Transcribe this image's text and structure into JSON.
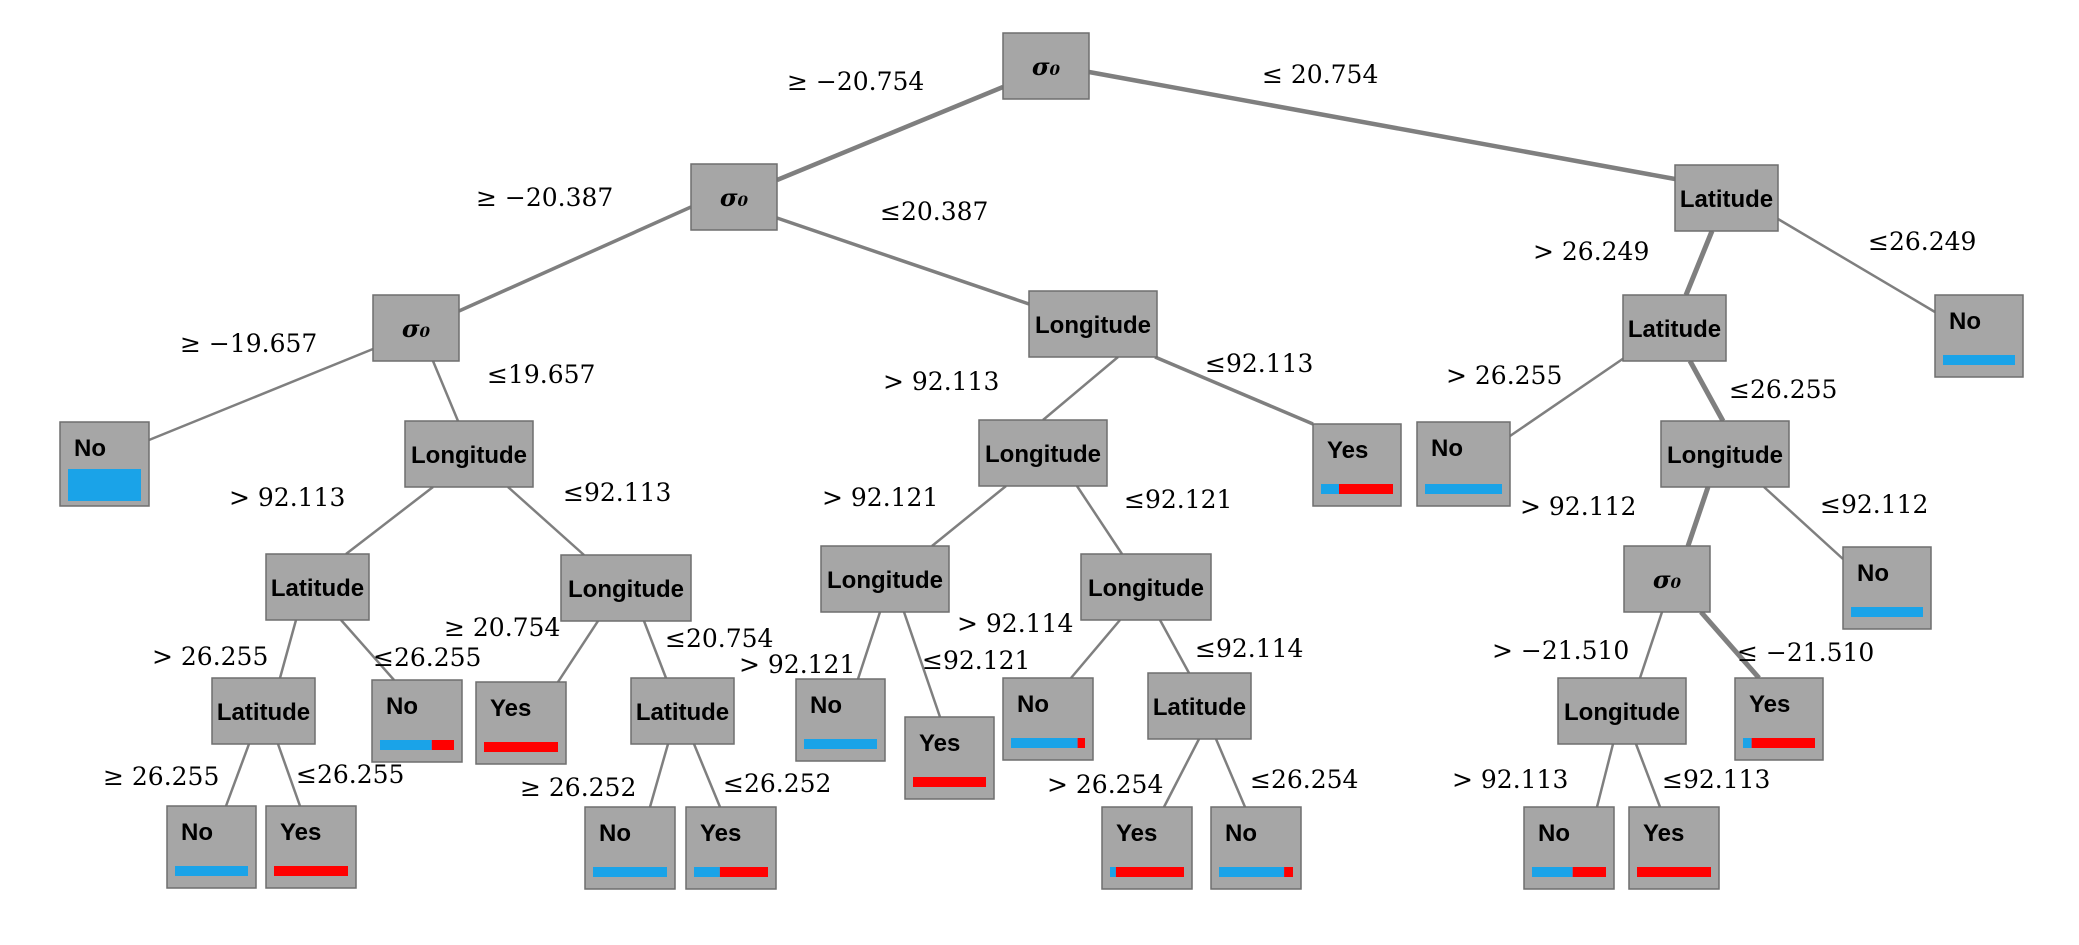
{
  "colors": {
    "no_class": "#1aa3e8",
    "yes_class": "#ff0000",
    "node_fill": "#a6a6a6",
    "edge": "#7f7f7f"
  },
  "nodes": [
    {
      "id": "n1",
      "label": "σ₀"
    },
    {
      "id": "n2",
      "label": "σ₀"
    },
    {
      "id": "n3",
      "label": "Latitude"
    },
    {
      "id": "n4",
      "label": "σ₀"
    },
    {
      "id": "n5",
      "label": "Longitude"
    },
    {
      "id": "n6",
      "label": "Latitude"
    },
    {
      "id": "n7",
      "label": "No",
      "no_share": 1.0,
      "yes_share": 0.0
    },
    {
      "id": "n8",
      "label": "No",
      "no_share": 1.0,
      "yes_share": 0.0
    },
    {
      "id": "n9",
      "label": "Longitude"
    },
    {
      "id": "n10",
      "label": "Longitude"
    },
    {
      "id": "n11",
      "label": "Yes",
      "no_share": 0.25,
      "yes_share": 0.75
    },
    {
      "id": "n12",
      "label": "No",
      "no_share": 1.0,
      "yes_share": 0.0
    },
    {
      "id": "n13",
      "label": "Longitude"
    },
    {
      "id": "n14",
      "label": "Latitude"
    },
    {
      "id": "n15",
      "label": "Longitude"
    },
    {
      "id": "n16",
      "label": "Longitude"
    },
    {
      "id": "n17",
      "label": "Longitude"
    },
    {
      "id": "n18",
      "label": "σ₀"
    },
    {
      "id": "n19",
      "label": "No",
      "no_share": 1.0,
      "yes_share": 0.0
    },
    {
      "id": "n20",
      "label": "Latitude"
    },
    {
      "id": "n21",
      "label": "No",
      "no_share": 0.7,
      "yes_share": 0.3
    },
    {
      "id": "n22",
      "label": "Yes",
      "no_share": 0.0,
      "yes_share": 1.0
    },
    {
      "id": "n23",
      "label": "Latitude"
    },
    {
      "id": "n24",
      "label": "No",
      "no_share": 1.0,
      "yes_share": 0.0
    },
    {
      "id": "n25",
      "label": "Yes",
      "no_share": 0.0,
      "yes_share": 1.0
    },
    {
      "id": "n26",
      "label": "No",
      "no_share": 0.9,
      "yes_share": 0.1
    },
    {
      "id": "n27",
      "label": "Latitude"
    },
    {
      "id": "n28",
      "label": "Longitude"
    },
    {
      "id": "n29",
      "label": "Yes",
      "no_share": 0.12,
      "yes_share": 0.88
    },
    {
      "id": "n30",
      "label": "No",
      "no_share": 1.0,
      "yes_share": 0.0
    },
    {
      "id": "n31",
      "label": "Yes",
      "no_share": 0.0,
      "yes_share": 1.0
    },
    {
      "id": "n32",
      "label": "No",
      "no_share": 1.0,
      "yes_share": 0.0
    },
    {
      "id": "n33",
      "label": "Yes",
      "no_share": 0.35,
      "yes_share": 0.65
    },
    {
      "id": "n34",
      "label": "Yes",
      "no_share": 0.08,
      "yes_share": 0.92
    },
    {
      "id": "n35",
      "label": "No",
      "no_share": 0.88,
      "yes_share": 0.12
    },
    {
      "id": "n36",
      "label": "No",
      "no_share": 0.55,
      "yes_share": 0.45
    },
    {
      "id": "n37",
      "label": "Yes",
      "no_share": 0.0,
      "yes_share": 1.0
    }
  ],
  "edges": [
    {
      "from": "n1",
      "to": "n2",
      "label": "≥ −20.754"
    },
    {
      "from": "n1",
      "to": "n3",
      "label": "≤ 20.754"
    },
    {
      "from": "n2",
      "to": "n4",
      "label": "≥ −20.387"
    },
    {
      "from": "n2",
      "to": "n5",
      "label": "≤20.387"
    },
    {
      "from": "n3",
      "to": "n6",
      "label": "> 26.249"
    },
    {
      "from": "n3",
      "to": "n7",
      "label": "≤26.249"
    },
    {
      "from": "n4",
      "to": "n8",
      "label": "≥ −19.657"
    },
    {
      "from": "n4",
      "to": "n9",
      "label": "≤19.657"
    },
    {
      "from": "n5",
      "to": "n10",
      "label": "> 92.113"
    },
    {
      "from": "n5",
      "to": "n11",
      "label": "≤92.113"
    },
    {
      "from": "n6",
      "to": "n12",
      "label": "> 26.255"
    },
    {
      "from": "n6",
      "to": "n13",
      "label": "≤26.255"
    },
    {
      "from": "n9",
      "to": "n14",
      "label": "> 92.113"
    },
    {
      "from": "n9",
      "to": "n15",
      "label": "≤92.113"
    },
    {
      "from": "n10",
      "to": "n16",
      "label": "> 92.121"
    },
    {
      "from": "n10",
      "to": "n17",
      "label": "≤92.121"
    },
    {
      "from": "n13",
      "to": "n18",
      "label": "> 92.112"
    },
    {
      "from": "n13",
      "to": "n19",
      "label": "≤92.112"
    },
    {
      "from": "n14",
      "to": "n20",
      "label": "> 26.255"
    },
    {
      "from": "n14",
      "to": "n21",
      "label": "≤26.255"
    },
    {
      "from": "n15",
      "to": "n22",
      "label": "≥ 20.754"
    },
    {
      "from": "n15",
      "to": "n23",
      "label": "≤20.754"
    },
    {
      "from": "n16",
      "to": "n24",
      "label": "> 92.121"
    },
    {
      "from": "n16",
      "to": "n25",
      "label": "≤92.121"
    },
    {
      "from": "n17",
      "to": "n26",
      "label": "> 92.114"
    },
    {
      "from": "n17",
      "to": "n27",
      "label": "≤92.114"
    },
    {
      "from": "n18",
      "to": "n28",
      "label": "> −21.510"
    },
    {
      "from": "n18",
      "to": "n29",
      "label": "≤ −21.510"
    },
    {
      "from": "n20",
      "to": "n30",
      "label": "≥ 26.255"
    },
    {
      "from": "n20",
      "to": "n31",
      "label": "≤26.255"
    },
    {
      "from": "n23",
      "to": "n32",
      "label": "≥ 26.252"
    },
    {
      "from": "n23",
      "to": "n33",
      "label": "≤26.252"
    },
    {
      "from": "n27",
      "to": "n34",
      "label": "> 26.254"
    },
    {
      "from": "n27",
      "to": "n35",
      "label": "≤26.254"
    },
    {
      "from": "n28",
      "to": "n36",
      "label": "> 92.113"
    },
    {
      "from": "n28",
      "to": "n37",
      "label": "≤92.113"
    }
  ]
}
